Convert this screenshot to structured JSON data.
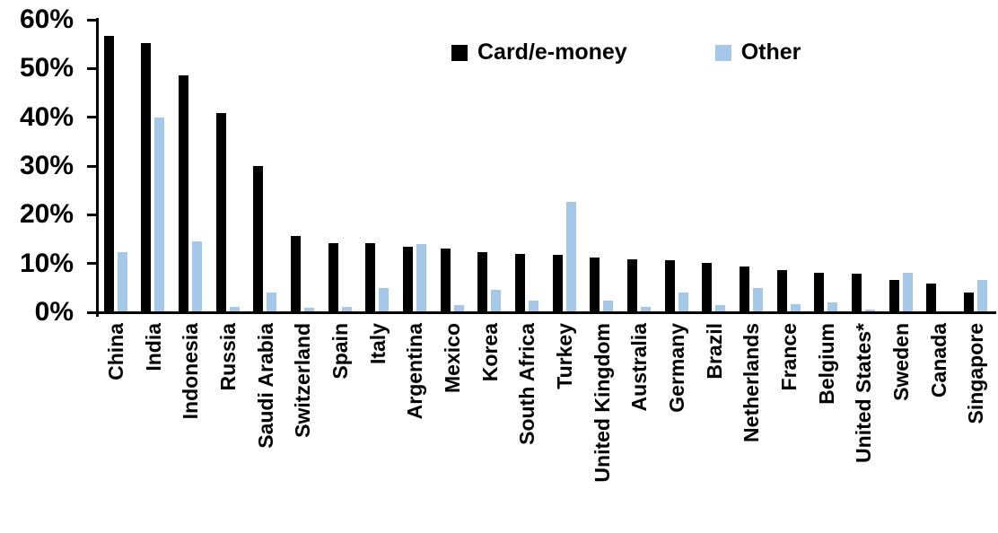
{
  "chart_data": {
    "type": "bar",
    "title": "",
    "xlabel": "",
    "ylabel": "",
    "categories": [
      "China",
      "India",
      "Indonesia",
      "Russia",
      "Saudi Arabia",
      "Switzerland",
      "Spain",
      "Italy",
      "Argentina",
      "Mexico",
      "Korea",
      "South Africa",
      "Turkey",
      "United Kingdom",
      "Australia",
      "Germany",
      "Brazil",
      "Netherlands",
      "France",
      "Belgium",
      "United States*",
      "Sweden",
      "Canada",
      "Singapore"
    ],
    "series": [
      {
        "name": "Card/e-money",
        "color": "#000000",
        "values": [
          56.6,
          55.1,
          48.4,
          40.6,
          29.8,
          15.4,
          14.0,
          14.0,
          13.3,
          12.8,
          12.1,
          11.7,
          11.6,
          11.0,
          10.7,
          10.5,
          9.9,
          9.2,
          8.5,
          8.0,
          7.8,
          6.4,
          5.8,
          3.8
        ]
      },
      {
        "name": "Other",
        "color": "#A6C8E8",
        "values": [
          12.2,
          39.8,
          14.4,
          0.9,
          3.9,
          0.8,
          1.0,
          4.7,
          13.8,
          1.3,
          4.5,
          2.2,
          22.4,
          2.2,
          1.0,
          3.8,
          1.2,
          4.7,
          1.4,
          1.9,
          0.3,
          7.9,
          0.0,
          6.5
        ]
      }
    ],
    "y_axis": {
      "min": 0,
      "max": 60,
      "tick_step": 10,
      "tick_labels": [
        "0%",
        "10%",
        "20%",
        "30%",
        "40%",
        "50%",
        "60%"
      ],
      "unit": "%"
    },
    "legend": {
      "position": "top-center",
      "entries": [
        "Card/e-money",
        "Other"
      ]
    },
    "grid": false
  }
}
